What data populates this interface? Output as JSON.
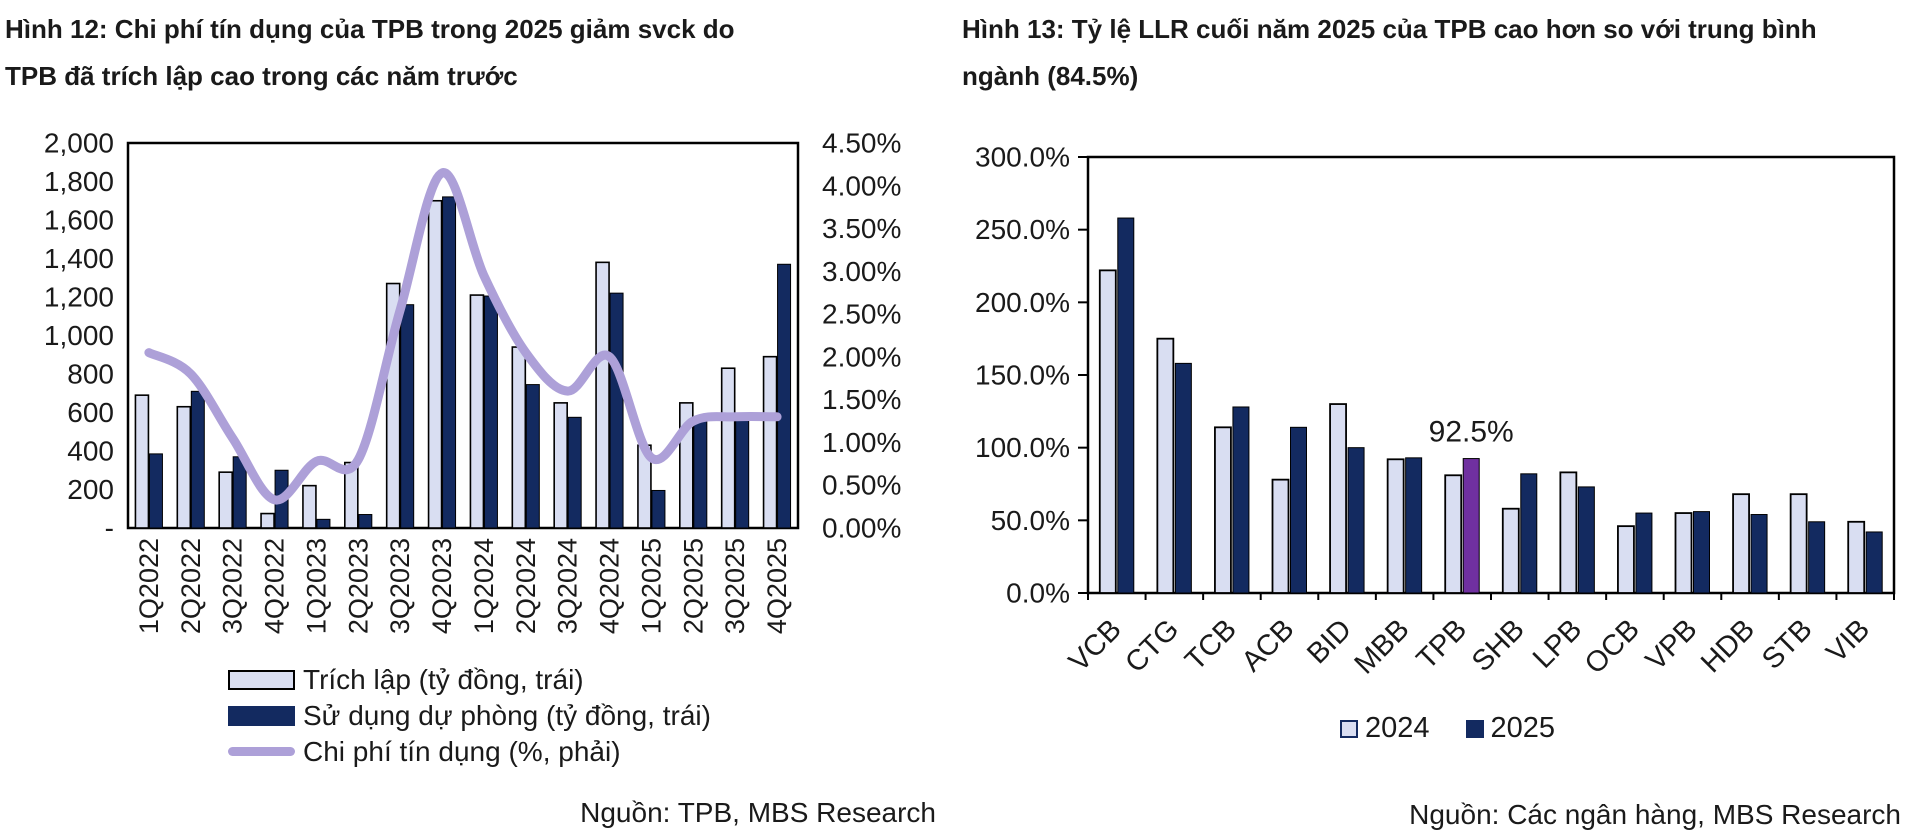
{
  "report": {
    "publisher": "MBS Research"
  },
  "chart_data": [
    {
      "id": "fig12",
      "type": "bar+line",
      "title": "Hình 12: Chi phí tín dụng của TPB trong 2025 giảm svck do TPB đã trích lập cao trong các năm trước",
      "source": "Nguồn: TPB, MBS Research",
      "categories": [
        "1Q2022",
        "2Q2022",
        "3Q2022",
        "4Q2022",
        "1Q2023",
        "2Q2023",
        "3Q2023",
        "4Q2023",
        "1Q2024",
        "2Q2024",
        "3Q2024",
        "4Q2024",
        "1Q2025",
        "2Q2025",
        "3Q2025",
        "4Q2025"
      ],
      "series": [
        {
          "name": "Trích lập (tỷ đồng, trái)",
          "type": "bar",
          "axis": "left",
          "fill": "#D9DEF2",
          "stroke": "#000000",
          "values": [
            690,
            630,
            290,
            75,
            220,
            340,
            1270,
            1700,
            1210,
            940,
            650,
            1380,
            430,
            650,
            830,
            890
          ]
        },
        {
          "name": "Sử dụng dự phòng (tỷ đồng, trái)",
          "type": "bar",
          "axis": "left",
          "fill": "#132A60",
          "stroke": "#000000",
          "values": [
            385,
            710,
            370,
            300,
            45,
            70,
            1160,
            1720,
            1205,
            745,
            575,
            1220,
            195,
            570,
            560,
            1370
          ]
        },
        {
          "name": "Chi phí tín dụng (%, phải)",
          "type": "line",
          "axis": "right",
          "stroke": "#ADA0D8",
          "values": [
            2.05,
            1.8,
            1.05,
            0.33,
            0.78,
            0.8,
            2.55,
            4.15,
            2.95,
            2.05,
            1.6,
            2.0,
            0.82,
            1.25,
            1.3,
            1.3
          ]
        }
      ],
      "left_axis": {
        "min": 0,
        "max": 2000,
        "step": 200,
        "labels": [
          "2,000",
          "1,800",
          "1,600",
          "1,400",
          "1,200",
          "1,000",
          "800",
          "600",
          "400",
          "200",
          "-"
        ]
      },
      "right_axis": {
        "min": 0,
        "max": 4.5,
        "step": 0.5,
        "labels": [
          "4.50%",
          "4.00%",
          "3.50%",
          "3.00%",
          "2.50%",
          "2.00%",
          "1.50%",
          "1.00%",
          "0.50%",
          "0.00%"
        ]
      },
      "grid": "off",
      "legend_position": "bottom-left"
    },
    {
      "id": "fig13",
      "type": "bar",
      "title": "Hình 13: Tỷ lệ LLR cuối năm 2025 của TPB cao hơn so với trung bình ngành (84.5%)",
      "source": "Nguồn: Các ngân hàng, MBS Research",
      "categories": [
        "VCB",
        "CTG",
        "TCB",
        "ACB",
        "BID",
        "MBB",
        "TPB",
        "SHB",
        "LPB",
        "OCB",
        "VPB",
        "HDB",
        "STB",
        "VIB"
      ],
      "series": [
        {
          "name": "2024",
          "fill": "#D9DEF2",
          "stroke": "#000000",
          "values": [
            222,
            175,
            114,
            78,
            130,
            92,
            81,
            58,
            83,
            46,
            55,
            68,
            68,
            49
          ]
        },
        {
          "name": "2025",
          "fill": "#132A60",
          "stroke": "#000000",
          "values": [
            258,
            158,
            128,
            114,
            100,
            93,
            92.5,
            82,
            73,
            55,
            56,
            54,
            49,
            42
          ]
        }
      ],
      "highlight": {
        "category": "TPB",
        "series": "2025",
        "fill": "#7030A0",
        "label": "92.5%"
      },
      "y_axis": {
        "min": 0,
        "max": 300,
        "step": 50,
        "labels": [
          "300.0%",
          "250.0%",
          "200.0%",
          "150.0%",
          "100.0%",
          "50.0%",
          "0.0%"
        ]
      },
      "grid": "off",
      "legend_position": "bottom-center"
    }
  ]
}
